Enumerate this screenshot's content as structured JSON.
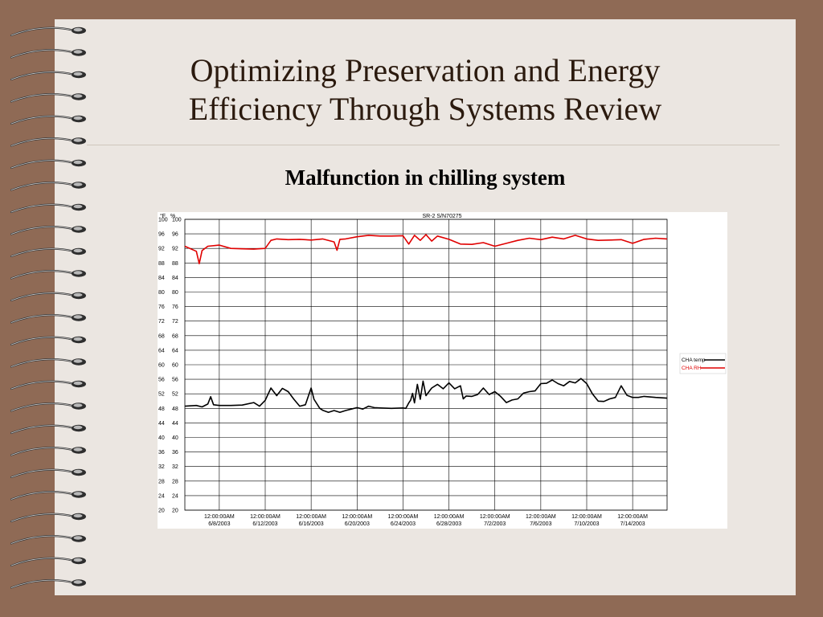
{
  "slide": {
    "title_line1": "Optimizing Preservation and Energy",
    "title_line2": "Efficiency Through Systems Review",
    "subtitle": "Malfunction in chilling system"
  },
  "colors": {
    "background": "#8f6a55",
    "slide": "#ebe6e1",
    "title": "#2b1a0e",
    "temp_series": "#000000",
    "rh_series": "#e00000"
  },
  "spine": {
    "ring_count": 26,
    "icon": "spiral-binding-rings"
  },
  "chart_data": {
    "type": "line",
    "title": "SR-2 S/N70275",
    "left_axis_unit": "°F",
    "right_axis_unit": "%",
    "ylim": [
      20,
      100
    ],
    "y_ticks": [
      20,
      24,
      28,
      32,
      36,
      40,
      44,
      48,
      52,
      56,
      60,
      64,
      68,
      72,
      76,
      80,
      84,
      88,
      92,
      96,
      100
    ],
    "x_range": [
      "2003-06-05",
      "2003-07-17"
    ],
    "x_ticks": [
      {
        "time": "12:00:00AM",
        "date": "6/8/2003"
      },
      {
        "time": "12:00:00AM",
        "date": "6/12/2003"
      },
      {
        "time": "12:00:00AM",
        "date": "6/16/2003"
      },
      {
        "time": "12:00:00AM",
        "date": "6/20/2003"
      },
      {
        "time": "12:00:00AM",
        "date": "6/24/2003"
      },
      {
        "time": "12:00:00AM",
        "date": "6/28/2003"
      },
      {
        "time": "12:00:00AM",
        "date": "7/2/2003"
      },
      {
        "time": "12:00:00AM",
        "date": "7/6/2003"
      },
      {
        "time": "12:00:00AM",
        "date": "7/10/2003"
      },
      {
        "time": "12:00:00AM",
        "date": "7/14/2003"
      }
    ],
    "grid": true,
    "legend_position": "right",
    "series": [
      {
        "name": "CHA temp",
        "color": "#000000",
        "points": [
          [
            "2003-06-05",
            48.6
          ],
          [
            "2003-06-06",
            48.8
          ],
          [
            "2003-06-06T12",
            48.4
          ],
          [
            "2003-06-07",
            49.2
          ],
          [
            "2003-06-07T06",
            51.2
          ],
          [
            "2003-06-07T12",
            49.0
          ],
          [
            "2003-06-08",
            48.8
          ],
          [
            "2003-06-09",
            48.8
          ],
          [
            "2003-06-10",
            48.9
          ],
          [
            "2003-06-11",
            49.6
          ],
          [
            "2003-06-11T12",
            48.6
          ],
          [
            "2003-06-12",
            50.2
          ],
          [
            "2003-06-12T12",
            53.6
          ],
          [
            "2003-06-13",
            51.5
          ],
          [
            "2003-06-13T12",
            53.5
          ],
          [
            "2003-06-14",
            52.6
          ],
          [
            "2003-06-14T12",
            50.5
          ],
          [
            "2003-06-15",
            48.6
          ],
          [
            "2003-06-15T12",
            49.0
          ],
          [
            "2003-06-16",
            53.6
          ],
          [
            "2003-06-16T06",
            50.5
          ],
          [
            "2003-06-16T18",
            48.0
          ],
          [
            "2003-06-17",
            47.5
          ],
          [
            "2003-06-17T12",
            46.9
          ],
          [
            "2003-06-18",
            47.4
          ],
          [
            "2003-06-18T12",
            46.9
          ],
          [
            "2003-06-19",
            47.4
          ],
          [
            "2003-06-19T12",
            47.8
          ],
          [
            "2003-06-20",
            48.2
          ],
          [
            "2003-06-20T12",
            47.8
          ],
          [
            "2003-06-21",
            48.6
          ],
          [
            "2003-06-21T12",
            48.2
          ],
          [
            "2003-06-22",
            48.1
          ],
          [
            "2003-06-23",
            48.0
          ],
          [
            "2003-06-24",
            48.1
          ],
          [
            "2003-06-24T06",
            48.0
          ],
          [
            "2003-06-24T12",
            49.5
          ],
          [
            "2003-06-24T16",
            50.3
          ],
          [
            "2003-06-24T20",
            52.1
          ],
          [
            "2003-06-25",
            49.5
          ],
          [
            "2003-06-25T06",
            54.6
          ],
          [
            "2003-06-25T12",
            50.5
          ],
          [
            "2003-06-25T18",
            55.5
          ],
          [
            "2003-06-26",
            51.5
          ],
          [
            "2003-06-26T12",
            53.6
          ],
          [
            "2003-06-27",
            54.6
          ],
          [
            "2003-06-27T12",
            53.4
          ],
          [
            "2003-06-28",
            55.0
          ],
          [
            "2003-06-28T12",
            53.4
          ],
          [
            "2003-06-29",
            54.2
          ],
          [
            "2003-06-29T06",
            50.6
          ],
          [
            "2003-06-29T12",
            51.4
          ],
          [
            "2003-06-30",
            51.3
          ],
          [
            "2003-06-30T12",
            51.8
          ],
          [
            "2003-07-01",
            53.6
          ],
          [
            "2003-07-01T12",
            51.8
          ],
          [
            "2003-07-02",
            52.6
          ],
          [
            "2003-07-02T12",
            51.3
          ],
          [
            "2003-07-03",
            49.6
          ],
          [
            "2003-07-03T12",
            50.3
          ],
          [
            "2003-07-04",
            50.6
          ],
          [
            "2003-07-04T12",
            52.2
          ],
          [
            "2003-07-05",
            52.6
          ],
          [
            "2003-07-05T12",
            52.8
          ],
          [
            "2003-07-06",
            54.8
          ],
          [
            "2003-07-06T12",
            54.9
          ],
          [
            "2003-07-07",
            55.8
          ],
          [
            "2003-07-07T12",
            54.8
          ],
          [
            "2003-07-08",
            54.2
          ],
          [
            "2003-07-08T12",
            55.4
          ],
          [
            "2003-07-09",
            55.0
          ],
          [
            "2003-07-09T12",
            56.2
          ],
          [
            "2003-07-10",
            54.8
          ],
          [
            "2003-07-10T12",
            52.0
          ],
          [
            "2003-07-11",
            50.0
          ],
          [
            "2003-07-11T12",
            49.9
          ],
          [
            "2003-07-12",
            50.6
          ],
          [
            "2003-07-12T12",
            51.0
          ],
          [
            "2003-07-13",
            54.2
          ],
          [
            "2003-07-13T12",
            51.6
          ],
          [
            "2003-07-14",
            51.0
          ],
          [
            "2003-07-14T12",
            51.0
          ],
          [
            "2003-07-15",
            51.3
          ],
          [
            "2003-07-16",
            51.0
          ],
          [
            "2003-07-17",
            50.8
          ]
        ]
      },
      {
        "name": "CHA RH",
        "color": "#e00000",
        "points": [
          [
            "2003-06-05",
            92.6
          ],
          [
            "2003-06-06",
            91.2
          ],
          [
            "2003-06-06T06",
            87.8
          ],
          [
            "2003-06-06T12",
            91.4
          ],
          [
            "2003-06-07",
            92.6
          ],
          [
            "2003-06-08",
            92.9
          ],
          [
            "2003-06-09",
            92.0
          ],
          [
            "2003-06-10",
            91.9
          ],
          [
            "2003-06-11",
            91.8
          ],
          [
            "2003-06-12",
            92.0
          ],
          [
            "2003-06-12T12",
            94.2
          ],
          [
            "2003-06-13",
            94.6
          ],
          [
            "2003-06-14",
            94.4
          ],
          [
            "2003-06-15",
            94.5
          ],
          [
            "2003-06-16",
            94.3
          ],
          [
            "2003-06-17",
            94.6
          ],
          [
            "2003-06-18",
            93.8
          ],
          [
            "2003-06-18T06",
            91.5
          ],
          [
            "2003-06-18T12",
            94.5
          ],
          [
            "2003-06-19",
            94.6
          ],
          [
            "2003-06-20",
            95.2
          ],
          [
            "2003-06-21",
            95.6
          ],
          [
            "2003-06-22",
            95.4
          ],
          [
            "2003-06-23",
            95.4
          ],
          [
            "2003-06-24",
            95.5
          ],
          [
            "2003-06-24T12",
            93.2
          ],
          [
            "2003-06-25",
            95.6
          ],
          [
            "2003-06-25T12",
            94.2
          ],
          [
            "2003-06-26",
            95.8
          ],
          [
            "2003-06-26T12",
            94.0
          ],
          [
            "2003-06-27",
            95.4
          ],
          [
            "2003-06-28",
            94.5
          ],
          [
            "2003-06-29",
            93.2
          ],
          [
            "2003-06-30",
            93.1
          ],
          [
            "2003-07-01",
            93.6
          ],
          [
            "2003-07-02",
            92.6
          ],
          [
            "2003-07-03",
            93.4
          ],
          [
            "2003-07-04",
            94.2
          ],
          [
            "2003-07-05",
            94.8
          ],
          [
            "2003-07-06",
            94.4
          ],
          [
            "2003-07-07",
            95.1
          ],
          [
            "2003-07-08",
            94.6
          ],
          [
            "2003-07-09",
            95.6
          ],
          [
            "2003-07-10",
            94.6
          ],
          [
            "2003-07-11",
            94.2
          ],
          [
            "2003-07-12",
            94.3
          ],
          [
            "2003-07-13",
            94.4
          ],
          [
            "2003-07-14",
            93.4
          ],
          [
            "2003-07-15",
            94.5
          ],
          [
            "2003-07-16",
            94.8
          ],
          [
            "2003-07-17",
            94.6
          ]
        ]
      }
    ]
  }
}
